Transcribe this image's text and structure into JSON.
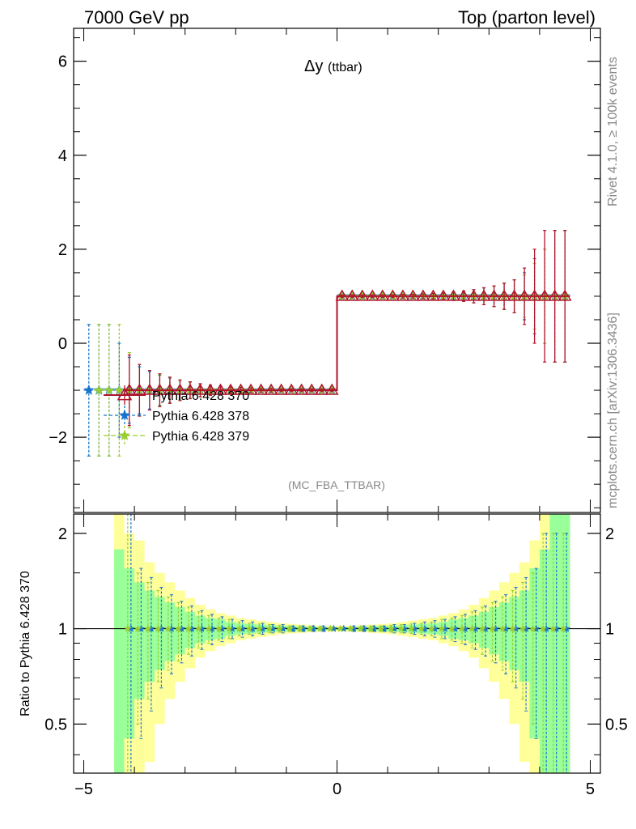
{
  "header": {
    "left": "7000 GeV pp",
    "right": "Top (parton level)"
  },
  "side_labels": {
    "rivet": "Rivet 4.1.0, ≥ 100k events",
    "mcplots": "mcplots.cern.ch [arXiv:1306.3436]"
  },
  "colors": {
    "pythia370": "#b0142c",
    "pythia378": "#1874cd",
    "pythia379": "#9acd32",
    "band_inner": "#99ff99",
    "band_outer": "#ffff99"
  },
  "chart_data": [
    {
      "type": "line",
      "title": "Δy",
      "title_suffix": "(ttbar)",
      "watermark": "(MC_FBA_TTBAR)",
      "xlim": [
        -5.2,
        5.2
      ],
      "ylim": [
        -3.6,
        6.7
      ],
      "yticks": [
        -2,
        0,
        2,
        4,
        6
      ],
      "yticklabels": [
        "−2",
        "0",
        "2",
        "4",
        "6"
      ],
      "legend_position": "center-left",
      "legend": [
        "Pythia 6.428 370",
        "Pythia 6.428 378",
        "Pythia 6.428 379"
      ],
      "bin_edges": [
        -4.6,
        -4.4,
        -4.2,
        -4.0,
        -3.8,
        -3.6,
        -3.4,
        -3.2,
        -3.0,
        -2.8,
        -2.6,
        -2.4,
        -2.2,
        -2.0,
        -1.8,
        -1.6,
        -1.4,
        -1.2,
        -1.0,
        -0.8,
        -0.6,
        -0.4,
        -0.2,
        0.0,
        0.2,
        0.4,
        0.6,
        0.8,
        1.0,
        1.2,
        1.4,
        1.6,
        1.8,
        2.0,
        2.2,
        2.4,
        2.6,
        2.8,
        3.0,
        3.2,
        3.4,
        3.6,
        3.8,
        4.0,
        4.2,
        4.4,
        4.6
      ],
      "series": [
        {
          "name": "Pythia 6.428 370",
          "x": [
            -4.1,
            -3.9,
            -3.7,
            -3.5,
            -3.3,
            -3.1,
            -2.9,
            -2.7,
            -2.5,
            -2.3,
            -2.1,
            -1.9,
            -1.7,
            -1.5,
            -1.3,
            -1.1,
            -0.9,
            -0.7,
            -0.5,
            -0.3,
            -0.1,
            0.1,
            0.3,
            0.5,
            0.7,
            0.9,
            1.1,
            1.3,
            1.5,
            1.7,
            1.9,
            2.1,
            2.3,
            2.5,
            2.7,
            2.9,
            3.1,
            3.3,
            3.5,
            3.7,
            3.9,
            4.1,
            4.3,
            4.5
          ],
          "y": [
            -1,
            -1,
            -1,
            -1,
            -1,
            -1,
            -1,
            -1,
            -1,
            -1,
            -1,
            -1,
            -1,
            -1,
            -1,
            -1,
            -1,
            -1,
            -1,
            -1,
            -1,
            1,
            1,
            1,
            1,
            1,
            1,
            1,
            1,
            1,
            1,
            1,
            1,
            1,
            1,
            1,
            1,
            1,
            1,
            1,
            1,
            1,
            1,
            1
          ],
          "yerr": [
            0.75,
            0.55,
            0.42,
            0.35,
            0.28,
            0.22,
            0.18,
            0.14,
            0.11,
            0.09,
            0.07,
            0.06,
            0.05,
            0.04,
            0.04,
            0.03,
            0.03,
            0.03,
            0.03,
            0.03,
            0.03,
            0.03,
            0.03,
            0.03,
            0.03,
            0.03,
            0.03,
            0.04,
            0.04,
            0.05,
            0.06,
            0.07,
            0.09,
            0.11,
            0.14,
            0.18,
            0.22,
            0.28,
            0.35,
            0.6,
            1.0,
            1.4,
            1.4,
            1.4
          ]
        },
        {
          "name": "Pythia 6.428 378",
          "x": [
            -4.9,
            -4.7,
            -4.5,
            -4.3,
            -4.1,
            -3.9,
            -3.7,
            -3.5,
            -3.3,
            -3.1,
            -2.9,
            -2.7,
            -2.5,
            -2.3,
            -2.1,
            -1.9,
            -1.7,
            -1.5,
            -1.3,
            -1.1,
            -0.9,
            -0.7,
            -0.5,
            -0.3,
            -0.1,
            0.1,
            0.3,
            0.5,
            0.7,
            0.9,
            1.1,
            1.3,
            1.5,
            1.7,
            1.9,
            2.1,
            2.3,
            2.5,
            2.7,
            2.9,
            3.1,
            3.3,
            3.5,
            3.7,
            3.9,
            4.1,
            4.3,
            4.5
          ],
          "y": [
            -1,
            -1,
            -1,
            -1,
            -1,
            -1,
            -1,
            -1,
            -1,
            -1,
            -1,
            -1,
            -1,
            -1,
            -1,
            -1,
            -1,
            -1,
            -1,
            -1,
            -1,
            -1,
            -1,
            -1,
            -1,
            1,
            1,
            1,
            1,
            1,
            1,
            1,
            1,
            1,
            1,
            1,
            1,
            1,
            1,
            1,
            1,
            1,
            1,
            1,
            1,
            1,
            1,
            1
          ],
          "yerr": [
            1.4,
            1.4,
            1.4,
            1.0,
            0.7,
            0.5,
            0.4,
            0.32,
            0.26,
            0.21,
            0.17,
            0.13,
            0.1,
            0.08,
            0.07,
            0.06,
            0.05,
            0.04,
            0.04,
            0.03,
            0.03,
            0.03,
            0.03,
            0.03,
            0.03,
            0.03,
            0.03,
            0.03,
            0.03,
            0.03,
            0.03,
            0.04,
            0.04,
            0.05,
            0.06,
            0.07,
            0.09,
            0.11,
            0.14,
            0.18,
            0.22,
            0.28,
            0.35,
            0.5,
            0.8,
            1.0,
            1.4,
            1.4
          ]
        },
        {
          "name": "Pythia 6.428 379",
          "x": [
            -4.7,
            -4.5,
            -4.3,
            -4.1,
            -3.9,
            -3.7,
            -3.5,
            -3.3,
            -3.1,
            -2.9,
            -2.7,
            -2.5,
            -2.3,
            -2.1,
            -1.9,
            -1.7,
            -1.5,
            -1.3,
            -1.1,
            -0.9,
            -0.7,
            -0.5,
            -0.3,
            -0.1,
            0.1,
            0.3,
            0.5,
            0.7,
            0.9,
            1.1,
            1.3,
            1.5,
            1.7,
            1.9,
            2.1,
            2.3,
            2.5,
            2.7,
            2.9,
            3.1,
            3.3,
            3.5,
            3.7,
            3.9,
            4.1,
            4.3,
            4.5
          ],
          "y": [
            -1,
            -1,
            -1,
            -1,
            -1,
            -1,
            -1,
            -1,
            -1,
            -1,
            -1,
            -1,
            -1,
            -1,
            -1,
            -1,
            -1,
            -1,
            -1,
            -1,
            -1,
            -1,
            -1,
            -1,
            1,
            1,
            1,
            1,
            1,
            1,
            1,
            1,
            1,
            1,
            1,
            1,
            1,
            1,
            1,
            1,
            1,
            1,
            1,
            1,
            1,
            1,
            1
          ],
          "yerr": [
            1.4,
            1.4,
            1.4,
            0.8,
            0.55,
            0.42,
            0.33,
            0.27,
            0.21,
            0.17,
            0.13,
            0.1,
            0.08,
            0.07,
            0.06,
            0.05,
            0.04,
            0.04,
            0.03,
            0.03,
            0.03,
            0.03,
            0.03,
            0.03,
            0.03,
            0.03,
            0.03,
            0.03,
            0.03,
            0.03,
            0.04,
            0.04,
            0.05,
            0.06,
            0.07,
            0.09,
            0.11,
            0.14,
            0.18,
            0.22,
            0.28,
            0.35,
            0.45,
            0.7,
            1.0,
            1.4,
            1.4
          ]
        }
      ]
    },
    {
      "type": "line",
      "title": "ratio",
      "ylabel": "Ratio to Pythia 6.428 370",
      "xlim": [
        -5.2,
        5.2
      ],
      "ylim": [
        0.35,
        2.3
      ],
      "yscale": "log",
      "yticks": [
        0.5,
        1,
        2
      ],
      "yticklabels": [
        "0.5",
        "1",
        "2"
      ],
      "xticks": [
        -5,
        0,
        5
      ],
      "xticklabels": [
        "−5",
        "0",
        "5"
      ],
      "reference": 1,
      "band_x": [
        -4.3,
        -4.1,
        -3.9,
        -3.7,
        -3.5,
        -3.3,
        -3.1,
        -2.9,
        -2.7,
        -2.5,
        -2.3,
        -2.1,
        -1.9,
        -1.7,
        -1.5,
        -1.3,
        -1.1,
        -0.9,
        -0.7,
        -0.5,
        -0.3,
        -0.1,
        0.1,
        0.3,
        0.5,
        0.7,
        0.9,
        1.1,
        1.3,
        1.5,
        1.7,
        1.9,
        2.1,
        2.3,
        2.5,
        2.7,
        2.9,
        3.1,
        3.3,
        3.5,
        3.7,
        3.9,
        4.1,
        4.3,
        4.5
      ],
      "band_inner": [
        0.78,
        0.55,
        0.4,
        0.32,
        0.26,
        0.21,
        0.17,
        0.13,
        0.1,
        0.08,
        0.07,
        0.05,
        0.04,
        0.035,
        0.03,
        0.025,
        0.02,
        0.02,
        0.015,
        0.015,
        0.01,
        0.01,
        0.01,
        0.01,
        0.015,
        0.015,
        0.02,
        0.02,
        0.025,
        0.03,
        0.035,
        0.04,
        0.05,
        0.07,
        0.08,
        0.1,
        0.13,
        0.17,
        0.21,
        0.26,
        0.32,
        0.55,
        0.78,
        1.3,
        1.3
      ],
      "band_outer": [
        1.4,
        1.0,
        0.9,
        0.62,
        0.5,
        0.4,
        0.32,
        0.25,
        0.19,
        0.15,
        0.12,
        0.1,
        0.08,
        0.07,
        0.06,
        0.05,
        0.04,
        0.035,
        0.03,
        0.025,
        0.02,
        0.02,
        0.02,
        0.02,
        0.025,
        0.03,
        0.035,
        0.04,
        0.05,
        0.06,
        0.07,
        0.08,
        0.1,
        0.12,
        0.15,
        0.19,
        0.25,
        0.32,
        0.4,
        0.5,
        0.62,
        0.9,
        1.3,
        1.5,
        1.5
      ],
      "series": [
        {
          "name": "Pythia 6.428 378",
          "x": [
            -4.1,
            -3.9,
            -3.7,
            -3.5,
            -3.3,
            -3.1,
            -2.9,
            -2.7,
            -2.5,
            -2.3,
            -2.1,
            -1.9,
            -1.7,
            -1.5,
            -1.3,
            -1.1,
            -0.9,
            -0.7,
            -0.5,
            -0.3,
            -0.1,
            0.1,
            0.3,
            0.5,
            0.7,
            0.9,
            1.1,
            1.3,
            1.5,
            1.7,
            1.9,
            2.1,
            2.3,
            2.5,
            2.7,
            2.9,
            3.1,
            3.3,
            3.5,
            3.7,
            3.9,
            4.1,
            4.3,
            4.5
          ],
          "y": [
            1,
            1,
            1,
            1,
            1,
            1,
            1,
            1,
            1,
            1,
            1,
            1,
            1,
            1,
            1,
            1,
            1,
            1,
            1,
            1,
            1,
            1,
            1,
            1,
            1,
            1,
            1,
            1,
            1,
            1,
            1,
            1,
            1,
            1,
            1,
            1,
            1,
            1,
            1,
            1,
            1,
            1,
            1,
            1
          ],
          "yerr": [
            1.4,
            0.55,
            0.45,
            0.35,
            0.28,
            0.22,
            0.18,
            0.14,
            0.11,
            0.09,
            0.07,
            0.06,
            0.05,
            0.04,
            0.03,
            0.03,
            0.02,
            0.02,
            0.02,
            0.02,
            0.01,
            0.01,
            0.02,
            0.02,
            0.02,
            0.02,
            0.03,
            0.03,
            0.04,
            0.05,
            0.06,
            0.07,
            0.09,
            0.11,
            0.14,
            0.18,
            0.22,
            0.28,
            0.35,
            0.45,
            0.55,
            1.0,
            1.0,
            1.0
          ]
        },
        {
          "name": "Pythia 6.428 379",
          "x": [
            -4.1,
            -3.9,
            -3.7,
            -3.5,
            -3.3,
            -3.1,
            -2.9,
            -2.7,
            -2.5,
            -2.3,
            -2.1,
            -1.9,
            -1.7,
            -1.5,
            -1.3,
            -1.1,
            -0.9,
            -0.7,
            -0.5,
            -0.3,
            -0.1,
            0.1,
            0.3,
            0.5,
            0.7,
            0.9,
            1.1,
            1.3,
            1.5,
            1.7,
            1.9,
            2.1,
            2.3,
            2.5,
            2.7,
            2.9,
            3.1,
            3.3,
            3.5,
            3.7,
            3.9,
            4.1,
            4.3,
            4.5
          ],
          "y": [
            1,
            1,
            1,
            1,
            1,
            1,
            1,
            1,
            1,
            1,
            1,
            1,
            1,
            1,
            1,
            1,
            1,
            1,
            1,
            1,
            1,
            1,
            1,
            1,
            1,
            1,
            1,
            1,
            1,
            1,
            1,
            1,
            1,
            1,
            1,
            1,
            1,
            1,
            1,
            1,
            1,
            1,
            1,
            1
          ],
          "yerr": [
            1.3,
            0.5,
            0.4,
            0.32,
            0.26,
            0.21,
            0.17,
            0.13,
            0.1,
            0.08,
            0.07,
            0.05,
            0.04,
            0.035,
            0.03,
            0.025,
            0.02,
            0.02,
            0.015,
            0.015,
            0.01,
            0.01,
            0.015,
            0.015,
            0.02,
            0.02,
            0.025,
            0.03,
            0.035,
            0.04,
            0.05,
            0.07,
            0.08,
            0.1,
            0.13,
            0.17,
            0.21,
            0.26,
            0.32,
            0.4,
            0.5,
            1.0,
            1.0,
            1.0
          ]
        }
      ]
    }
  ]
}
